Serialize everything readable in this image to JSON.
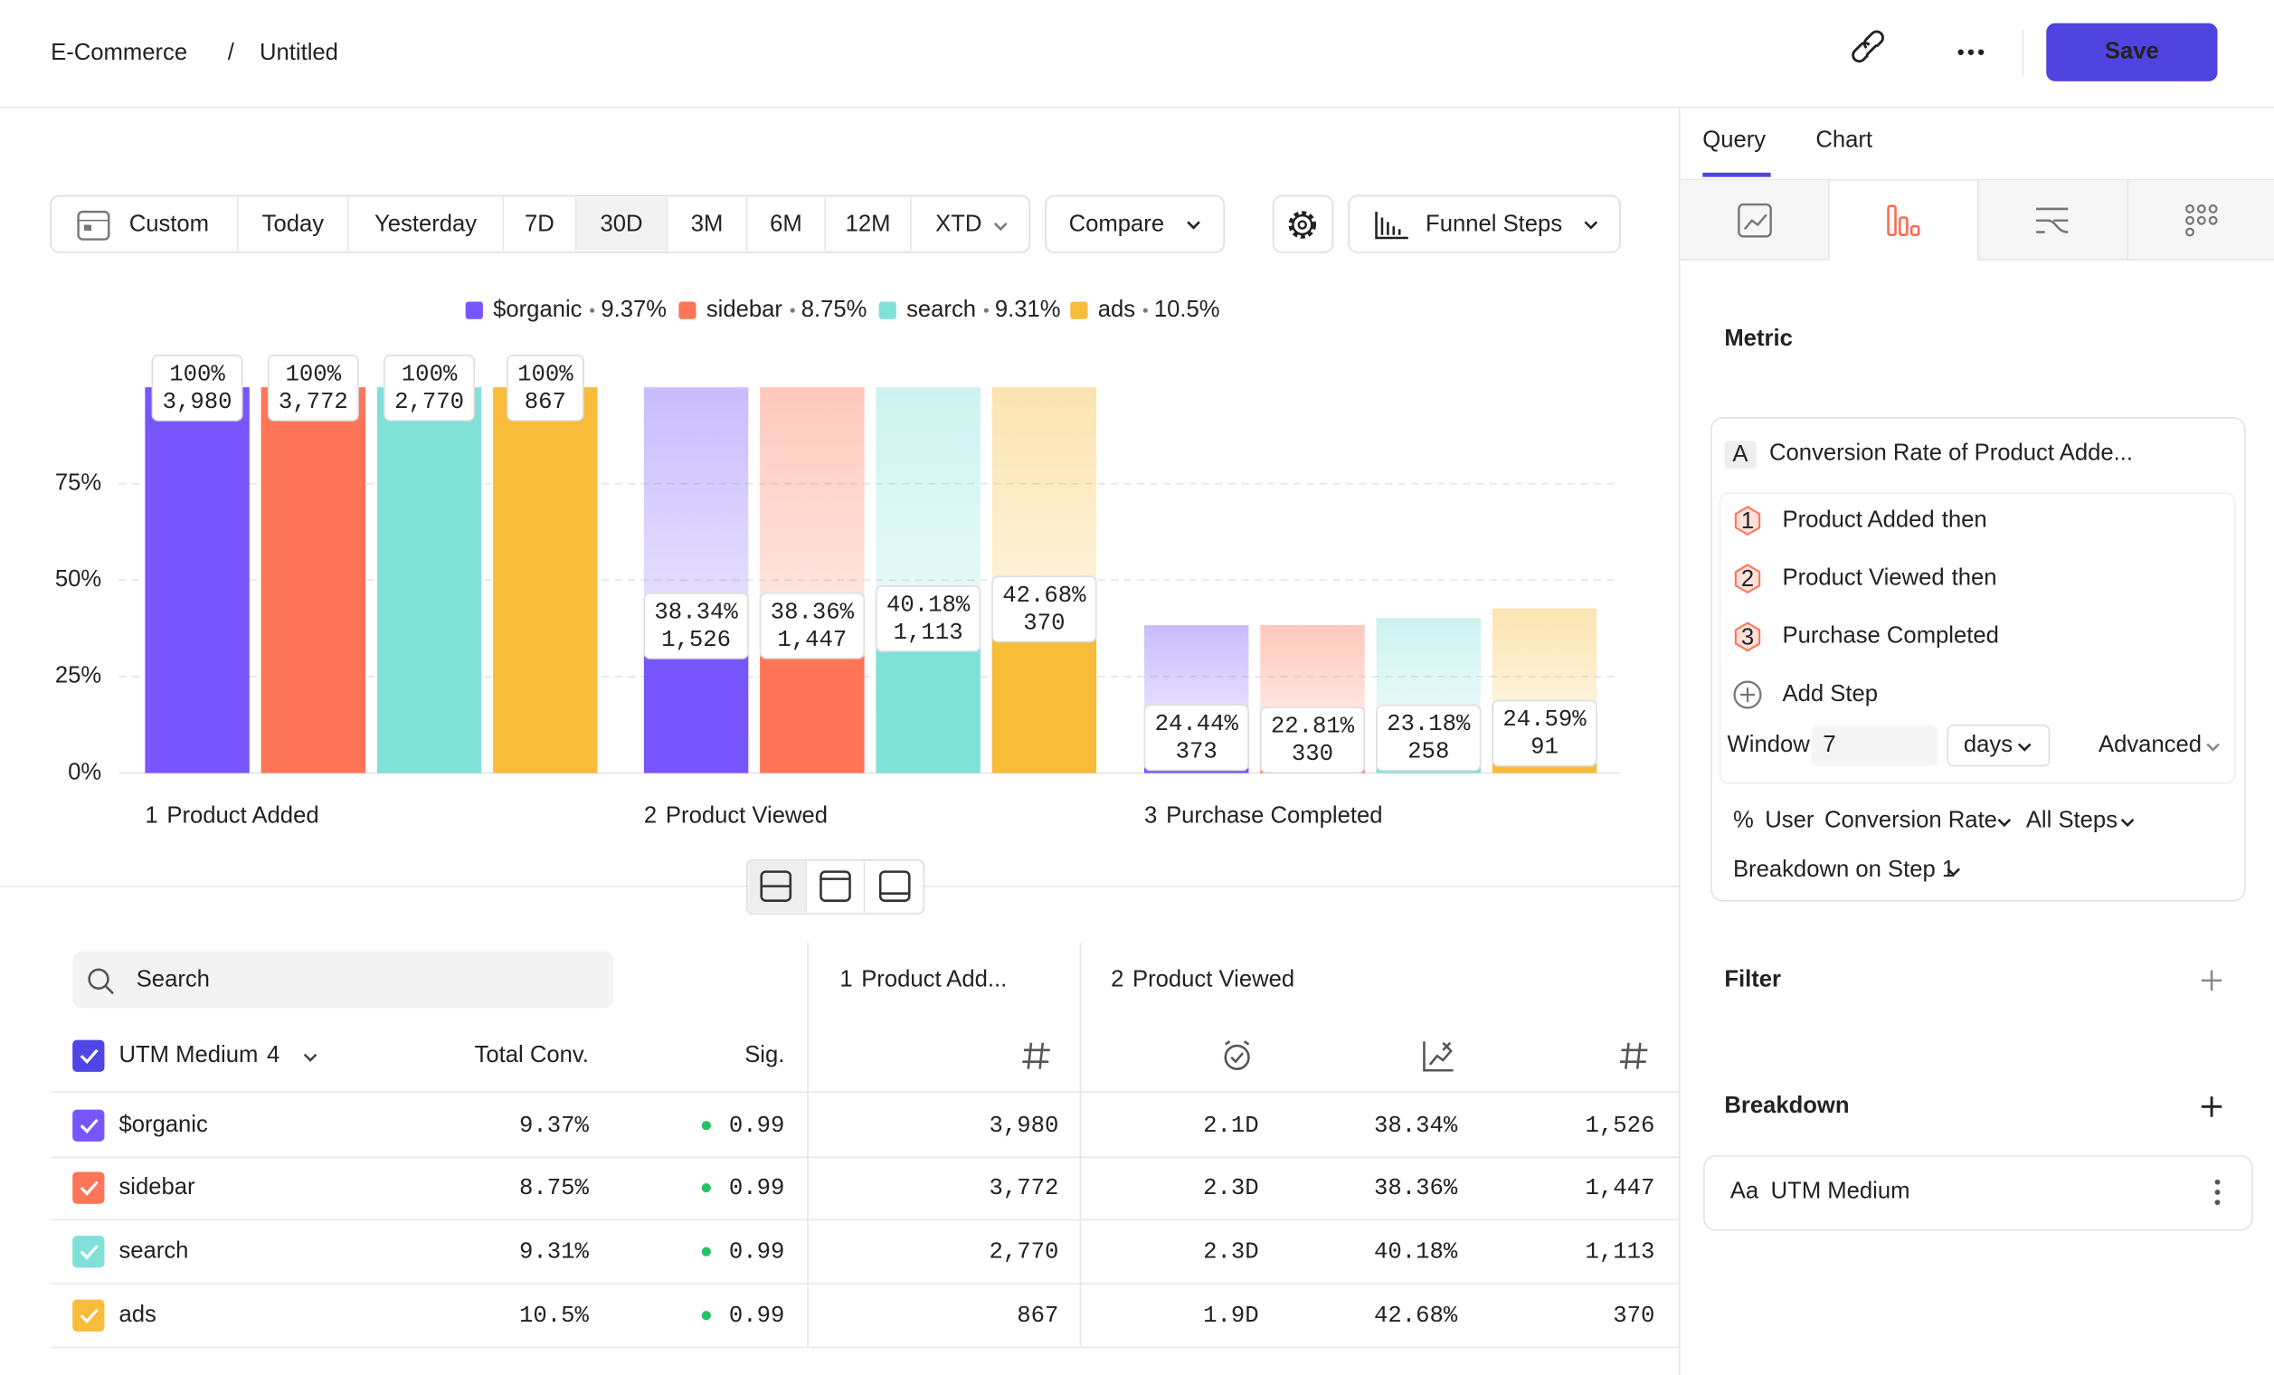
{
  "header": {
    "breadcrumb": [
      "E-Commerce",
      "Untitled"
    ],
    "separator": "/",
    "save": "Save"
  },
  "toolbar": {
    "date_ranges": [
      "Custom",
      "Today",
      "Yesterday",
      "7D",
      "30D",
      "3M",
      "6M",
      "12M",
      "XTD"
    ],
    "compare": "Compare",
    "chart_type": "Funnel Steps"
  },
  "chart_data": {
    "type": "funnel",
    "step_numbers": [
      "1",
      "2",
      "3"
    ],
    "categories": [
      "Product Added",
      "Product Viewed",
      "Purchase Completed"
    ],
    "ylim": [
      0,
      100
    ],
    "yticks": [
      {
        "value": 0,
        "label": "0%"
      },
      {
        "value": 25,
        "label": "25%"
      },
      {
        "value": 50,
        "label": "50%"
      },
      {
        "value": 75,
        "label": "75%"
      }
    ],
    "grid": true,
    "series": [
      {
        "name": "$organic",
        "color": "#7856ff",
        "values": [
          100,
          38.34,
          9.37
        ],
        "step_conversion": [
          100,
          38.34,
          24.44
        ],
        "step_conversion_labels": [
          "100%",
          "38.34%",
          "24.44%"
        ],
        "counts": [
          3980,
          1526,
          373
        ],
        "count_labels": [
          "3,980",
          "1,526",
          "373"
        ],
        "overall": 9.37,
        "overall_label": "9.37%"
      },
      {
        "name": "sidebar",
        "color": "#ff7557",
        "values": [
          100,
          38.36,
          8.75
        ],
        "step_conversion": [
          100,
          38.36,
          22.81
        ],
        "step_conversion_labels": [
          "100%",
          "38.36%",
          "22.81%"
        ],
        "counts": [
          3772,
          1447,
          330
        ],
        "count_labels": [
          "3,772",
          "1,447",
          "330"
        ],
        "overall": 8.75,
        "overall_label": "8.75%"
      },
      {
        "name": "search",
        "color": "#80e1d9",
        "values": [
          100,
          40.18,
          9.31
        ],
        "step_conversion": [
          100,
          40.18,
          23.18
        ],
        "step_conversion_labels": [
          "100%",
          "40.18%",
          "23.18%"
        ],
        "counts": [
          2770,
          1113,
          258
        ],
        "count_labels": [
          "2,770",
          "1,113",
          "258"
        ],
        "overall": 9.31,
        "overall_label": "9.31%"
      },
      {
        "name": "ads",
        "color": "#f8bc3b",
        "values": [
          100,
          42.68,
          10.5
        ],
        "step_conversion": [
          100,
          42.68,
          24.59
        ],
        "step_conversion_labels": [
          "100%",
          "42.68%",
          "24.59%"
        ],
        "counts": [
          867,
          370,
          91
        ],
        "count_labels": [
          "867",
          "370",
          "91"
        ],
        "overall": 10.5,
        "overall_label": "10.5%"
      }
    ]
  },
  "table": {
    "search_placeholder": "Search",
    "group_label": "UTM Medium",
    "group_count": "4",
    "columns": {
      "total": "Total Conv.",
      "sig": "Sig."
    },
    "step_headers": [
      "Product Add...",
      "Product Viewed"
    ],
    "rows": [
      {
        "sig": 0.99,
        "time": "2.1D"
      },
      {
        "sig": 0.99,
        "time": "2.3D"
      },
      {
        "sig": 0.99,
        "time": "2.3D"
      },
      {
        "sig": 0.99,
        "time": "1.9D"
      }
    ]
  },
  "panel": {
    "tabs": [
      "Query",
      "Chart"
    ],
    "metric": "Metric",
    "formula_letter": "A",
    "formula": "Conversion Rate of Product Adde...",
    "steps": [
      {
        "number": "1",
        "name": "Product Added",
        "suffix": "then"
      },
      {
        "number": "2",
        "name": "Product Viewed",
        "suffix": "then"
      },
      {
        "number": "3",
        "name": "Purchase Completed"
      }
    ],
    "add_step": "Add Step",
    "window_label": "Window",
    "window_value": "7",
    "window_unit": "days",
    "advanced": "Advanced",
    "measure": {
      "symbol": "%",
      "unit": "User",
      "type": "Conversion Rate",
      "steps": "All Steps"
    },
    "breakdown_step": "Breakdown on Step 1",
    "filter": "Filter",
    "breakdown": "Breakdown",
    "breakdown_item": {
      "icon": "Aa",
      "name": "UTM Medium"
    }
  }
}
